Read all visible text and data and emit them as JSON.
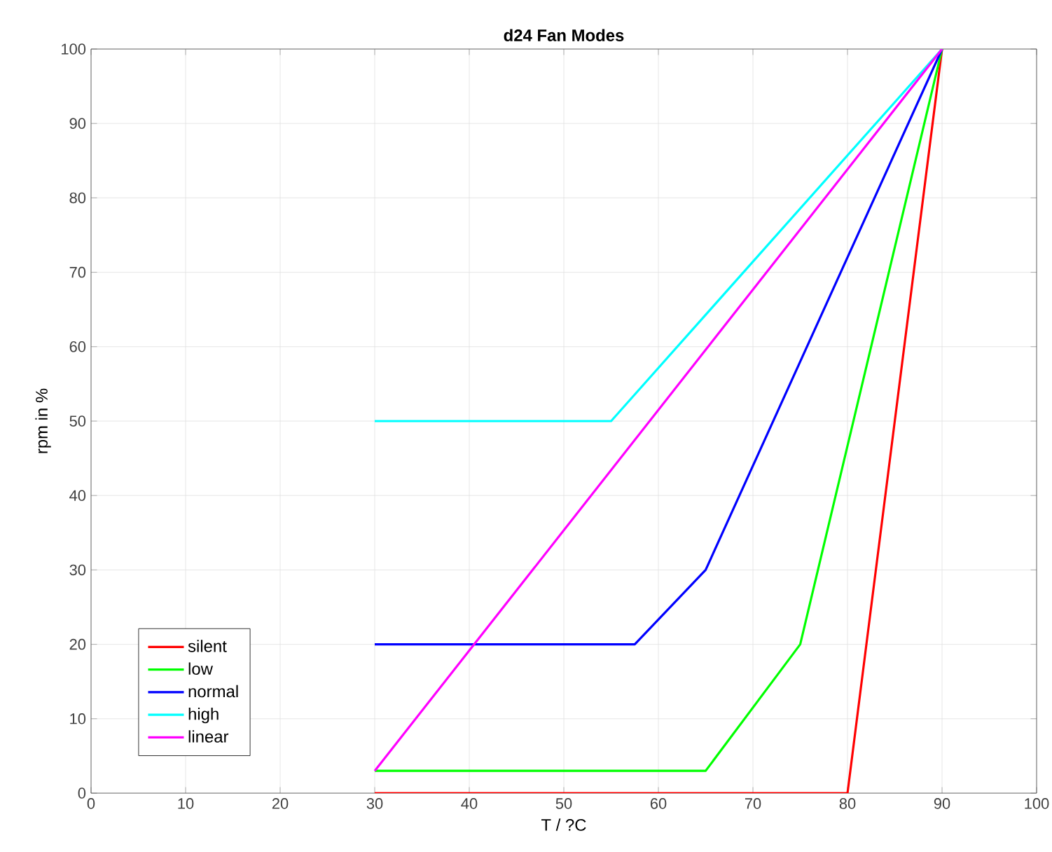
{
  "chart_data": {
    "type": "line",
    "title": "d24 Fan Modes",
    "xlabel": "T / ?C",
    "ylabel": "rpm in %",
    "xlim": [
      0,
      100
    ],
    "ylim": [
      0,
      100
    ],
    "xticks": [
      0,
      10,
      20,
      30,
      40,
      50,
      60,
      70,
      80,
      90,
      100
    ],
    "yticks": [
      0,
      10,
      20,
      30,
      40,
      50,
      60,
      70,
      80,
      90,
      100
    ],
    "grid": true,
    "legend": "bottom left",
    "marker": "none",
    "line_style": "solid",
    "series": [
      {
        "name": "silent",
        "color": "#ff0000",
        "x": [
          30,
          80,
          90
        ],
        "values": [
          0,
          0,
          100
        ]
      },
      {
        "name": "low",
        "color": "#00ff00",
        "x": [
          30,
          65,
          75,
          90
        ],
        "values": [
          3,
          3,
          20,
          100
        ]
      },
      {
        "name": "normal",
        "color": "#0000ff",
        "x": [
          30,
          57.5,
          65,
          90
        ],
        "values": [
          20,
          20,
          30,
          100
        ]
      },
      {
        "name": "high",
        "color": "#00ffff",
        "x": [
          30,
          55,
          90
        ],
        "values": [
          50,
          50,
          100
        ]
      },
      {
        "name": "linear",
        "color": "#ff00ff",
        "x": [
          30,
          90
        ],
        "values": [
          3,
          100
        ]
      }
    ]
  }
}
